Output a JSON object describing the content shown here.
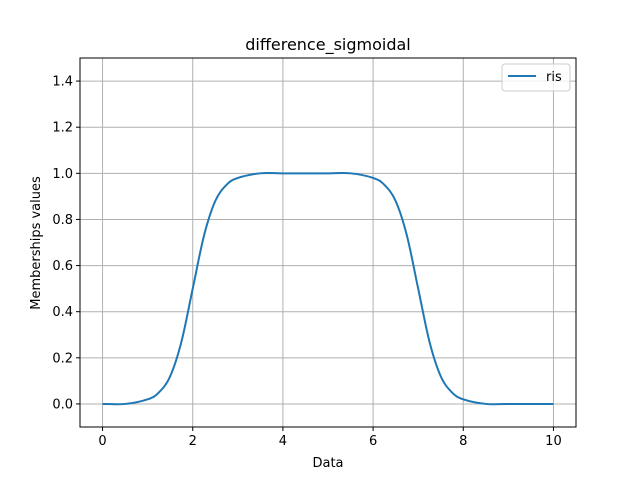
{
  "chart_data": {
    "type": "line",
    "title": "difference_sigmoidal",
    "xlabel": "Data",
    "ylabel": "Memberships values",
    "xlim": [
      -0.5,
      10.5
    ],
    "ylim": [
      -0.1,
      1.5
    ],
    "x_ticks": [
      0,
      2,
      4,
      6,
      8,
      10
    ],
    "x_tick_labels": [
      "0",
      "2",
      "4",
      "6",
      "8",
      "10"
    ],
    "y_ticks": [
      0.0,
      0.2,
      0.4,
      0.6,
      0.8,
      1.0,
      1.2,
      1.4
    ],
    "y_tick_labels": [
      "0.0",
      "0.2",
      "0.4",
      "0.6",
      "0.8",
      "1.0",
      "1.2",
      "1.4"
    ],
    "grid": true,
    "legend_position": "top-right",
    "series": [
      {
        "name": "ris",
        "color": "#1f77b4",
        "x": [
          0,
          0.5,
          1.0,
          1.25,
          1.5,
          1.75,
          2.0,
          2.25,
          2.5,
          2.75,
          3.0,
          3.5,
          4.0,
          4.5,
          5.0,
          5.5,
          6.0,
          6.25,
          6.5,
          6.75,
          7.0,
          7.25,
          7.5,
          7.75,
          8.0,
          8.5,
          9.0,
          10.0
        ],
        "y": [
          0.0,
          0.0,
          0.02,
          0.05,
          0.12,
          0.27,
          0.5,
          0.73,
          0.88,
          0.95,
          0.98,
          1.0,
          1.0,
          1.0,
          1.0,
          1.0,
          0.98,
          0.95,
          0.88,
          0.73,
          0.5,
          0.27,
          0.12,
          0.05,
          0.02,
          0.0,
          0.0,
          0.0
        ]
      }
    ]
  }
}
